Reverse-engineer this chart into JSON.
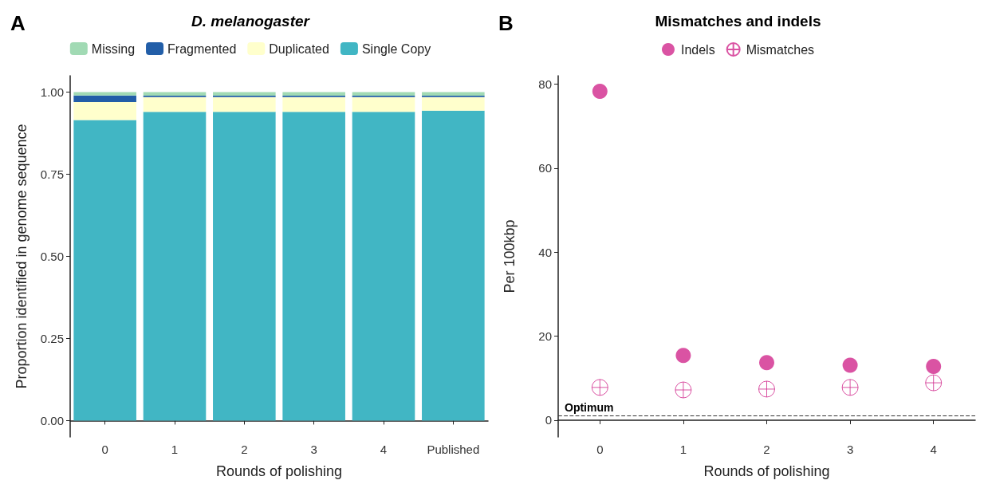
{
  "chart_data": [
    {
      "type": "bar",
      "title": "D. melanogaster",
      "xlabel": "Rounds of polishing",
      "ylabel": "Proportion identified in genome sequence",
      "annotations": [
        "A"
      ],
      "categories": [
        "0",
        "1",
        "2",
        "3",
        "4",
        "Published"
      ],
      "stacked": true,
      "legend": "top",
      "grid": false,
      "ylim": [
        -0.05,
        1.05
      ],
      "yticks": [
        {
          "value": 0,
          "label": "0.00"
        },
        0.25,
        {
          "value": 0.5,
          "label": "0.50"
        },
        0.75,
        {
          "value": 1,
          "label": "1.00"
        }
      ],
      "series": [
        {
          "name": "Single Copy",
          "color": "#41b6c4",
          "values": [
            0.915,
            0.94,
            0.94,
            0.94,
            0.94,
            0.944
          ]
        },
        {
          "name": "Duplicated",
          "color": "#ffffcc",
          "values": [
            0.055,
            0.045,
            0.045,
            0.045,
            0.045,
            0.041
          ]
        },
        {
          "name": "Fragmented",
          "color": "#225ea8",
          "values": [
            0.02,
            0.004,
            0.004,
            0.004,
            0.004,
            0.004
          ]
        },
        {
          "name": "Missing",
          "color": "#a1dab4",
          "values": [
            0.01,
            0.011,
            0.011,
            0.011,
            0.011,
            0.011
          ]
        }
      ]
    },
    {
      "type": "scatter",
      "title": "Mismatches and indels",
      "xlabel": "Rounds of polishing",
      "ylabel": "Per 100kbp",
      "annotations": [
        "B"
      ],
      "categories": [
        "0",
        "1",
        "2",
        "3",
        "4"
      ],
      "legend": "top",
      "grid": false,
      "ylim": [
        -4,
        82
      ],
      "yticks": [
        0,
        20,
        40,
        60,
        80
      ],
      "ref_lines": [
        {
          "axis": "y",
          "value": 1,
          "label": "Optimum",
          "color": "#333333",
          "line_style": "dashed"
        }
      ],
      "series": [
        {
          "name": "Indels",
          "color": "#d1288c",
          "marker": "circle",
          "values": [
            78.3,
            15.4,
            13.7,
            13.1,
            12.8
          ]
        },
        {
          "name": "Mismatches",
          "color": "#d1288c",
          "marker": "cross",
          "values": [
            7.8,
            7.2,
            7.4,
            7.8,
            8.9
          ]
        }
      ]
    }
  ]
}
